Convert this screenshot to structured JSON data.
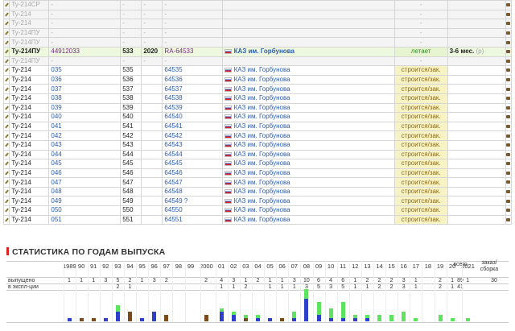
{
  "registry": {
    "rows": [
      {
        "name": "Ту-214СР",
        "serial": "-",
        "n": "-",
        "year": "-",
        "reg": "-",
        "owner": "",
        "status": "-",
        "period": "",
        "style": "gray"
      },
      {
        "name": "Ту-214",
        "serial": "-",
        "n": "-",
        "year": "-",
        "reg": "-",
        "owner": "",
        "status": "-",
        "period": "",
        "style": "gray"
      },
      {
        "name": "Ту-214",
        "serial": "-",
        "n": "-",
        "year": "-",
        "reg": "-",
        "owner": "",
        "status": "-",
        "period": "",
        "style": "gray"
      },
      {
        "name": "Ту-214ПУ",
        "serial": "-",
        "n": "-",
        "year": "-",
        "reg": "-",
        "owner": "",
        "status": "-",
        "period": "",
        "style": "gray"
      },
      {
        "name": "Ту-214ПУ",
        "serial": "-",
        "n": "-",
        "year": "-",
        "reg": "-",
        "owner": "",
        "status": "-",
        "period": "",
        "style": "gray"
      },
      {
        "name": "Ту-214ПУ",
        "serial": "44912033",
        "n": "533",
        "year": "2020",
        "reg": "RA-64533",
        "owner": "КАЗ им. Горбунова",
        "status": "летает",
        "period": "3-6 мес.",
        "period_extra": "(р)",
        "style": "hl"
      },
      {
        "name": "Ту-214ПУ",
        "serial": "-",
        "n": "-",
        "year": "-",
        "reg": "-",
        "owner": "",
        "status": "-",
        "period": "",
        "style": "gray"
      },
      {
        "name": "Ту-214",
        "serial": "035",
        "n": "535",
        "year": "",
        "reg": "64535",
        "owner": "КАЗ им. Горбунова",
        "status": "строится/зак.",
        "period": "",
        "style": ""
      },
      {
        "name": "Ту-214",
        "serial": "036",
        "n": "536",
        "year": "",
        "reg": "64536",
        "owner": "КАЗ им. Горбунова",
        "status": "строится/зак.",
        "period": "",
        "style": ""
      },
      {
        "name": "Ту-214",
        "serial": "037",
        "n": "537",
        "year": "",
        "reg": "64537",
        "owner": "КАЗ им. Горбунова",
        "status": "строится/зак.",
        "period": "",
        "style": ""
      },
      {
        "name": "Ту-214",
        "serial": "038",
        "n": "538",
        "year": "",
        "reg": "64538",
        "owner": "КАЗ им. Горбунова",
        "status": "строится/зак.",
        "period": "",
        "style": ""
      },
      {
        "name": "Ту-214",
        "serial": "039",
        "n": "539",
        "year": "",
        "reg": "64539",
        "owner": "КАЗ им. Горбунова",
        "status": "строится/зак.",
        "period": "",
        "style": ""
      },
      {
        "name": "Ту-214",
        "serial": "040",
        "n": "540",
        "year": "",
        "reg": "64540",
        "owner": "КАЗ им. Горбунова",
        "status": "строится/зак.",
        "period": "",
        "style": ""
      },
      {
        "name": "Ту-214",
        "serial": "041",
        "n": "541",
        "year": "",
        "reg": "64541",
        "owner": "КАЗ им. Горбунова",
        "status": "строится/зак.",
        "period": "",
        "style": ""
      },
      {
        "name": "Ту-214",
        "serial": "042",
        "n": "542",
        "year": "",
        "reg": "64542",
        "owner": "КАЗ им. Горбунова",
        "status": "строится/зак.",
        "period": "",
        "style": ""
      },
      {
        "name": "Ту-214",
        "serial": "043",
        "n": "543",
        "year": "",
        "reg": "64543",
        "owner": "КАЗ им. Горбунова",
        "status": "строится/зак.",
        "period": "",
        "style": ""
      },
      {
        "name": "Ту-214",
        "serial": "044",
        "n": "544",
        "year": "",
        "reg": "64544",
        "owner": "КАЗ им. Горбунова",
        "status": "строится/зак.",
        "period": "",
        "style": ""
      },
      {
        "name": "Ту-214",
        "serial": "045",
        "n": "545",
        "year": "",
        "reg": "64545",
        "owner": "КАЗ им. Горбунова",
        "status": "строится/зак.",
        "period": "",
        "style": ""
      },
      {
        "name": "Ту-214",
        "serial": "046",
        "n": "546",
        "year": "",
        "reg": "64546",
        "owner": "КАЗ им. Горбунова",
        "status": "строится/зак.",
        "period": "",
        "style": ""
      },
      {
        "name": "Ту-214",
        "serial": "047",
        "n": "547",
        "year": "",
        "reg": "64547",
        "owner": "КАЗ им. Горбунова",
        "status": "строится/зак.",
        "period": "",
        "style": ""
      },
      {
        "name": "Ту-214",
        "serial": "048",
        "n": "548",
        "year": "",
        "reg": "64548",
        "owner": "КАЗ им. Горбунова",
        "status": "строится/зак.",
        "period": "",
        "style": ""
      },
      {
        "name": "Ту-214",
        "serial": "049",
        "n": "549",
        "year": "",
        "reg": "64549 ?",
        "owner": "КАЗ им. Горбунова",
        "status": "строится/зак.",
        "period": "",
        "style": ""
      },
      {
        "name": "Ту-214",
        "serial": "050",
        "n": "550",
        "year": "",
        "reg": "64550",
        "owner": "КАЗ им. Горбунова",
        "status": "строится/зак.",
        "period": "",
        "style": ""
      },
      {
        "name": "Ту-214",
        "serial": "051",
        "n": "551",
        "year": "",
        "reg": "64551",
        "owner": "КАЗ им. Горбунова",
        "status": "строится/зак.",
        "period": "",
        "style": ""
      }
    ]
  },
  "stats": {
    "title": "СТАТИСТИКА ПО ГОДАМ ВЫПУСКА",
    "row_built_label": "выпущено",
    "row_oper_label": "в экспл-ции",
    "total_label": "всего",
    "order_label_1": "заказ/",
    "order_label_2": "сборка",
    "total_built": "89",
    "total_oper": "41",
    "order_value": "30",
    "years": [
      "1989",
      "90",
      "91",
      "92",
      "93",
      "94",
      "95",
      "96",
      "97",
      "98",
      "99",
      "2000",
      "01",
      "02",
      "03",
      "04",
      "05",
      "06",
      "07",
      "08",
      "09",
      "10",
      "11",
      "12",
      "13",
      "14",
      "15",
      "16",
      "17",
      "18",
      "19",
      "20",
      "2021"
    ],
    "built": [
      "1",
      "1",
      "1",
      "3",
      "5",
      "2",
      "1",
      "3",
      "2",
      "",
      "",
      "2",
      "4",
      "3",
      "1",
      "2",
      "1",
      "1",
      "3",
      "10",
      "6",
      "4",
      "6",
      "1",
      "2",
      "2",
      "2",
      "3",
      "1",
      "",
      "2",
      "1",
      "1"
    ],
    "oper": [
      "",
      "",
      "",
      "",
      "2",
      "1",
      "",
      "",
      "",
      "",
      "",
      "",
      "1",
      "1",
      "2",
      "",
      "1",
      "1",
      "1",
      "3",
      "5",
      "3",
      "5",
      "1",
      "1",
      "2",
      "2",
      "3",
      "1",
      "",
      "2",
      "1",
      ""
    ],
    "bars": [
      {
        "color": "#2e3fc9",
        "h": 1
      },
      {
        "color": "#7a4a1a",
        "h": 1
      },
      {
        "color": "#7a4a1a",
        "h": 1
      },
      {
        "color": "#2e3fc9",
        "h": 1
      },
      {
        "color": "#2e3fc9",
        "h": 3
      },
      {
        "color": "#7a4a1a",
        "h": 3
      },
      {
        "color": "#2e3fc9",
        "h": 1
      },
      {
        "color": "#2e3fc9",
        "h": 3
      },
      {
        "color": "#7a4a1a",
        "h": 2
      },
      {
        "color": "#fff",
        "h": 0
      },
      {
        "color": "#fff",
        "h": 0
      },
      {
        "color": "#7a4a1a",
        "h": 2
      },
      {
        "color": "#2e3fc9",
        "h": 3
      },
      {
        "color": "#2e3fc9",
        "h": 2
      },
      {
        "color": "#7a4a1a",
        "h": 1
      },
      {
        "color": "#2e3fc9",
        "h": 1
      },
      {
        "color": "#2e3fc9",
        "h": 1
      },
      {
        "color": "#7a4a1a",
        "h": 1
      },
      {
        "color": "#2e3fc9",
        "h": 1
      },
      {
        "color": "#2e3fc9",
        "h": 7
      },
      {
        "color": "#2e3fc9",
        "h": 2
      },
      {
        "color": "#2e3fc9",
        "h": 1
      },
      {
        "color": "#2e3fc9",
        "h": 1
      },
      {
        "color": "#2e3fc9",
        "h": 1
      },
      {
        "color": "#2e3fc9",
        "h": 1
      },
      {
        "color": "#fff",
        "h": 0
      },
      {
        "color": "#fff",
        "h": 0
      },
      {
        "color": "#fff",
        "h": 0
      },
      {
        "color": "#fff",
        "h": 0
      },
      {
        "color": "#fff",
        "h": 0
      },
      {
        "color": "#fff",
        "h": 0
      },
      {
        "color": "#fff",
        "h": 0
      },
      {
        "color": "#fff",
        "h": 0
      }
    ],
    "bars_green": [
      0,
      0,
      0,
      0,
      2,
      0,
      0,
      0,
      0,
      0,
      0,
      0,
      1,
      1,
      1,
      1,
      0,
      0,
      2,
      3,
      4,
      3,
      5,
      1,
      1,
      2,
      2,
      3,
      1,
      0,
      2,
      1,
      1
    ]
  }
}
